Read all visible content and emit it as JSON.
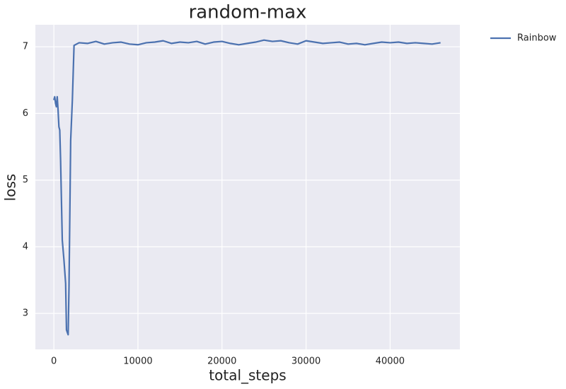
{
  "chart_data": {
    "type": "line",
    "title": "random-max",
    "x_label": "total_steps",
    "y_label": "loss",
    "x": [
      0,
      100,
      200,
      300,
      400,
      500,
      600,
      700,
      800,
      1000,
      1200,
      1400,
      1500,
      1700,
      1800,
      2000,
      2200,
      2400,
      3000,
      4000,
      5000,
      6000,
      7000,
      8000,
      9000,
      10000,
      11000,
      12000,
      13000,
      14000,
      15000,
      16000,
      17000,
      18000,
      19000,
      20000,
      21000,
      22000,
      23000,
      24000,
      25000,
      26000,
      27000,
      28000,
      29000,
      30000,
      31000,
      32000,
      33000,
      34000,
      35000,
      36000,
      37000,
      38000,
      39000,
      40000,
      41000,
      42000,
      43000,
      44000,
      45000,
      46000
    ],
    "series": [
      {
        "name": "Rainbow",
        "color": "#4c72b0",
        "values": [
          6.2,
          6.25,
          6.15,
          6.1,
          6.25,
          6.05,
          5.8,
          5.75,
          5.3,
          4.1,
          3.8,
          3.45,
          2.75,
          2.68,
          3.4,
          5.6,
          6.2,
          7.02,
          7.06,
          7.05,
          7.08,
          7.04,
          7.06,
          7.07,
          7.04,
          7.03,
          7.06,
          7.07,
          7.09,
          7.05,
          7.07,
          7.06,
          7.08,
          7.04,
          7.07,
          7.08,
          7.05,
          7.03,
          7.05,
          7.07,
          7.1,
          7.08,
          7.09,
          7.06,
          7.04,
          7.09,
          7.07,
          7.05,
          7.06,
          7.07,
          7.04,
          7.05,
          7.03,
          7.05,
          7.07,
          7.06,
          7.07,
          7.05,
          7.06,
          7.05,
          7.04,
          7.06
        ]
      }
    ],
    "xlim": [
      -2200,
      48300
    ],
    "ylim": [
      2.46,
      7.33
    ],
    "xticks": [
      0,
      10000,
      20000,
      30000,
      40000
    ],
    "yticks": [
      3,
      4,
      5,
      6,
      7
    ],
    "grid": true,
    "legend": "outside upper right"
  }
}
